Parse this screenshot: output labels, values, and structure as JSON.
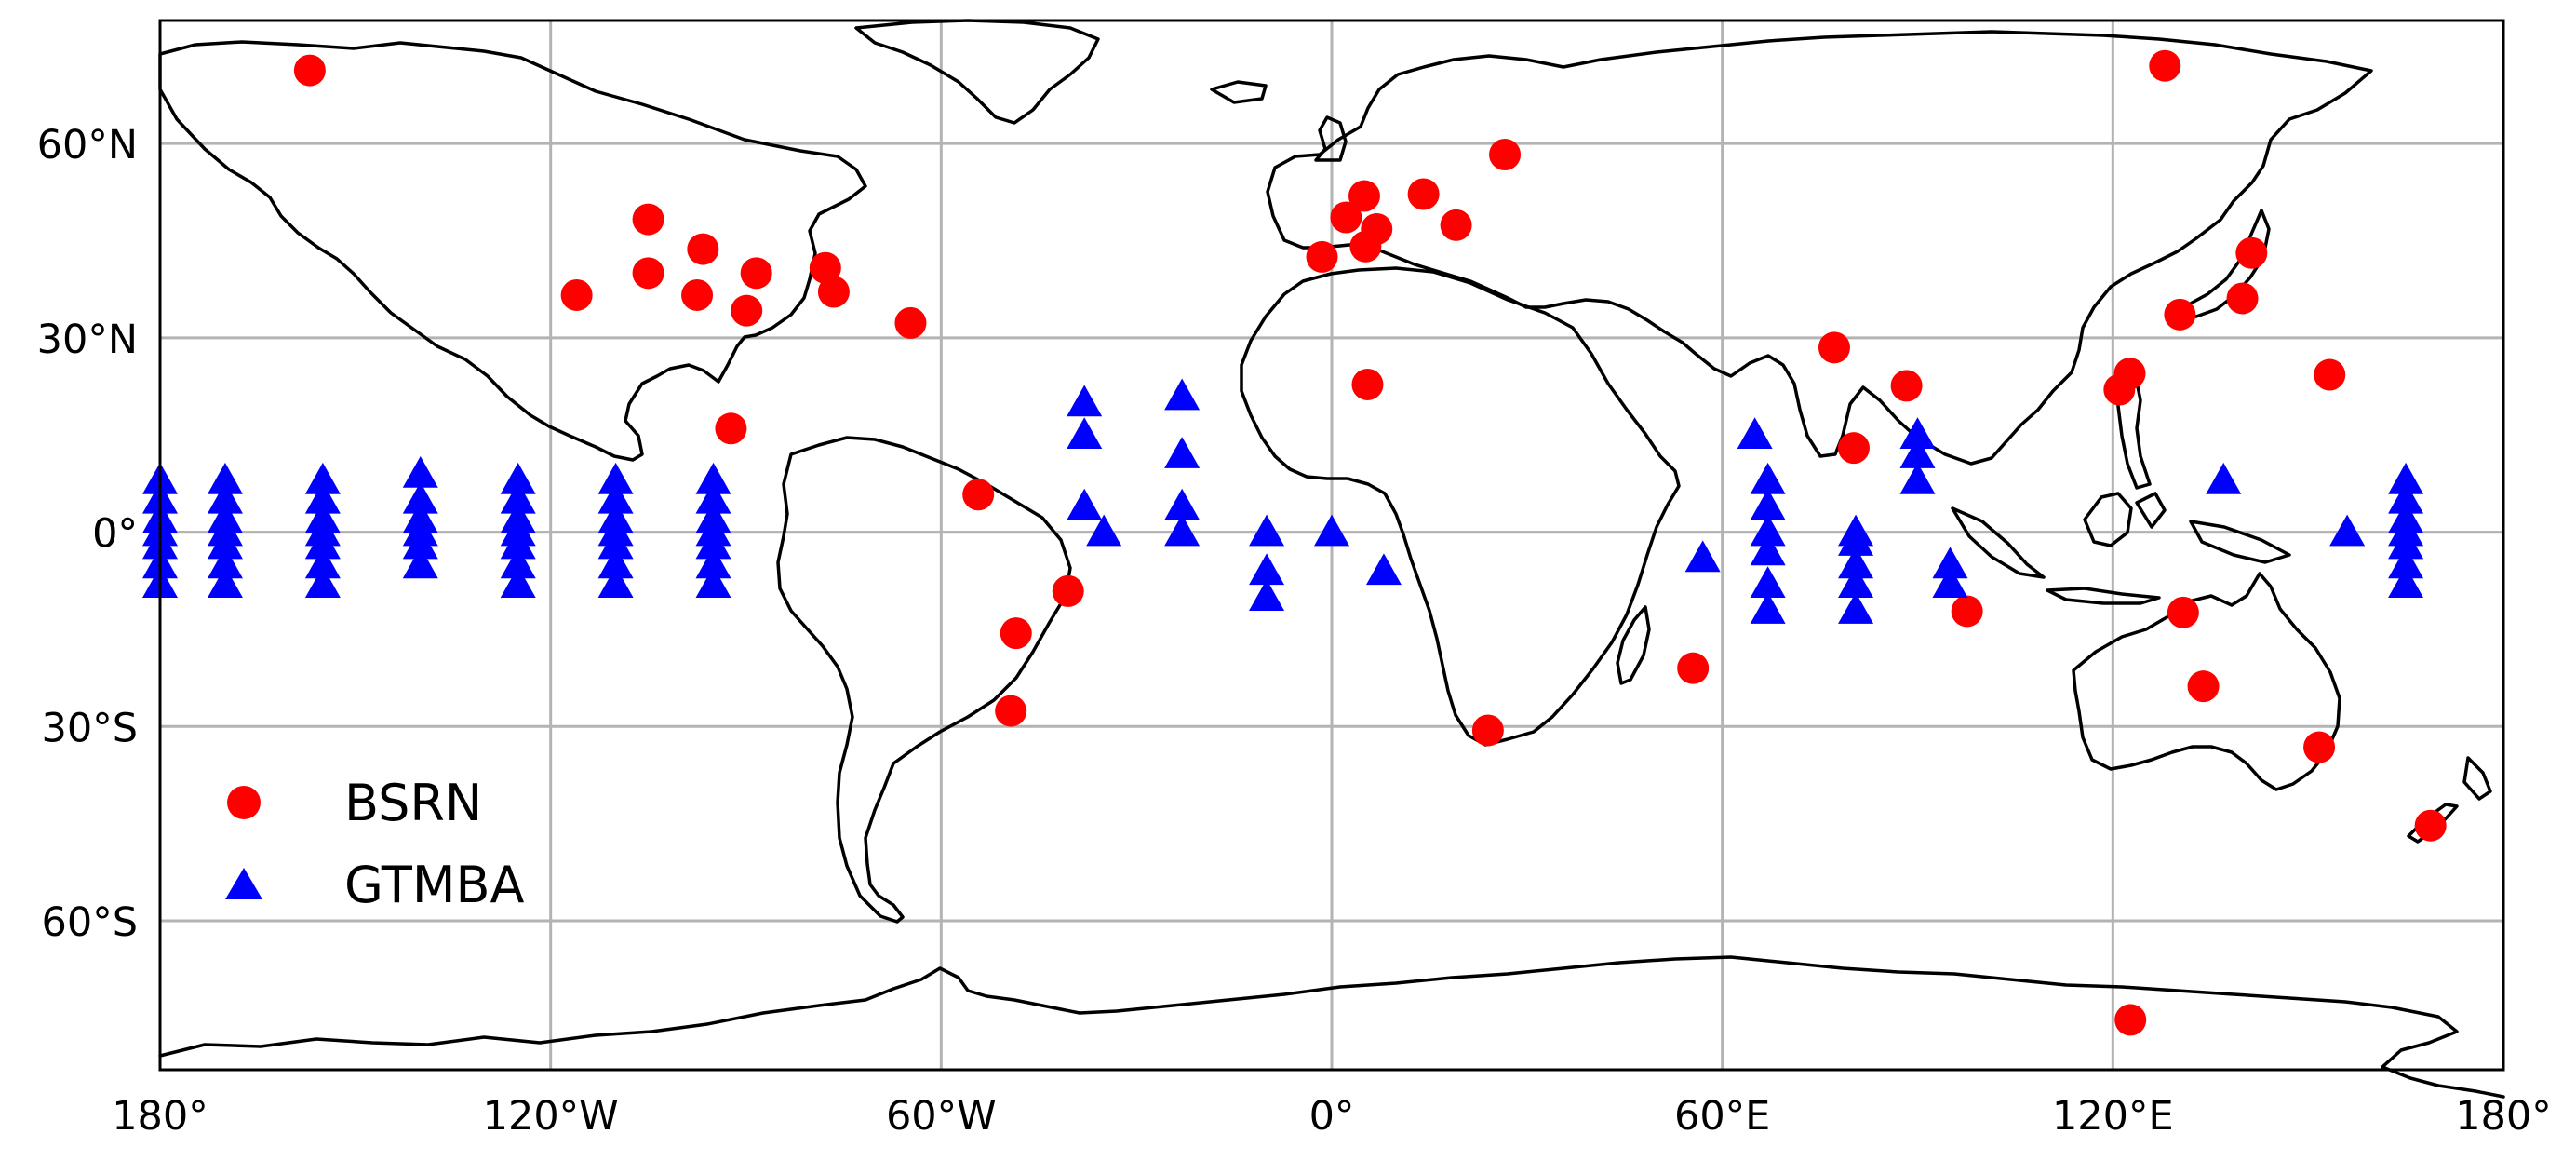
{
  "chart_data": {
    "type": "scatter",
    "projection": "PlateCarree",
    "xlim": [
      -180,
      180
    ],
    "ylim": [
      -83,
      79
    ],
    "grid": true,
    "legend_placement": "lower-left",
    "x_ticks": [
      {
        "value": -180,
        "label": "180°"
      },
      {
        "value": -120,
        "label": "120°W"
      },
      {
        "value": -60,
        "label": "60°W"
      },
      {
        "value": 0,
        "label": "0°"
      },
      {
        "value": 60,
        "label": "60°E"
      },
      {
        "value": 120,
        "label": "120°E"
      },
      {
        "value": 180,
        "label": "180°"
      }
    ],
    "y_ticks": [
      {
        "value": 60,
        "label": "60°N"
      },
      {
        "value": 30,
        "label": "30°N"
      },
      {
        "value": 0,
        "label": "0°"
      },
      {
        "value": -30,
        "label": "30°S"
      },
      {
        "value": -60,
        "label": "60°S"
      }
    ],
    "series": [
      {
        "name": "BSRN",
        "marker": "circle",
        "color": "#ff0000",
        "points": [
          [
            -157,
            71.3
          ],
          [
            -116,
            36.6
          ],
          [
            -105,
            40
          ],
          [
            -105,
            48.3
          ],
          [
            -97.5,
            36.6
          ],
          [
            -96.6,
            43.7
          ],
          [
            -89.9,
            34.2
          ],
          [
            -88.4,
            40
          ],
          [
            -77.8,
            40.8
          ],
          [
            -76.5,
            37.1
          ],
          [
            -64.7,
            32.3
          ],
          [
            -92.3,
            16
          ],
          [
            -54.3,
            5.8
          ],
          [
            -48.5,
            -15.6
          ],
          [
            -40.5,
            -9.1
          ],
          [
            -49.3,
            -27.6
          ],
          [
            -1.5,
            42.5
          ],
          [
            2.2,
            48.6
          ],
          [
            5,
            51.9
          ],
          [
            6.9,
            46.8
          ],
          [
            5.2,
            44.1
          ],
          [
            14.1,
            52.2
          ],
          [
            19.1,
            47.4
          ],
          [
            26.6,
            58.3
          ],
          [
            5.5,
            22.8
          ],
          [
            24,
            -30.6
          ],
          [
            55.5,
            -21
          ],
          [
            77.2,
            28.5
          ],
          [
            80.2,
            13
          ],
          [
            88.3,
            22.6
          ],
          [
            97.6,
            -12.2
          ],
          [
            121,
            22
          ],
          [
            122.6,
            24.5
          ],
          [
            128,
            72
          ],
          [
            130.8,
            -12.4
          ],
          [
            130.3,
            33.6
          ],
          [
            139.9,
            36.1
          ],
          [
            141.3,
            43.1
          ],
          [
            133.9,
            -23.8
          ],
          [
            153.3,
            24.3
          ],
          [
            151.7,
            -33.2
          ],
          [
            168.8,
            -45.3
          ],
          [
            122.7,
            -75.3
          ]
        ]
      },
      {
        "name": "GTMBA",
        "marker": "triangle",
        "color": "#0000ff",
        "points": [
          [
            -180,
            8
          ],
          [
            -180,
            5
          ],
          [
            -180,
            2
          ],
          [
            -180,
            0
          ],
          [
            -180,
            -2
          ],
          [
            -180,
            -5
          ],
          [
            -180,
            -8
          ],
          [
            -170,
            8
          ],
          [
            -170,
            5
          ],
          [
            -170,
            2
          ],
          [
            -170,
            0
          ],
          [
            -170,
            -2
          ],
          [
            -170,
            -5
          ],
          [
            -170,
            -8
          ],
          [
            -155,
            8
          ],
          [
            -155,
            5
          ],
          [
            -155,
            2
          ],
          [
            -155,
            0
          ],
          [
            -155,
            -2
          ],
          [
            -155,
            -5
          ],
          [
            -155,
            -8
          ],
          [
            -140,
            9
          ],
          [
            -140,
            5
          ],
          [
            -140,
            2
          ],
          [
            -140,
            0
          ],
          [
            -140,
            -2
          ],
          [
            -140,
            -5
          ],
          [
            -125,
            8
          ],
          [
            -125,
            5
          ],
          [
            -125,
            2
          ],
          [
            -125,
            0
          ],
          [
            -125,
            -2
          ],
          [
            -125,
            -5
          ],
          [
            -125,
            -8
          ],
          [
            -110,
            8
          ],
          [
            -110,
            5
          ],
          [
            -110,
            2
          ],
          [
            -110,
            0
          ],
          [
            -110,
            -2
          ],
          [
            -110,
            -5
          ],
          [
            -110,
            -8
          ],
          [
            -95,
            8
          ],
          [
            -95,
            5
          ],
          [
            -95,
            2
          ],
          [
            -95,
            0
          ],
          [
            -95,
            -2
          ],
          [
            -95,
            -5
          ],
          [
            -95,
            -8
          ],
          [
            -38,
            20
          ],
          [
            -38,
            15
          ],
          [
            -38,
            4
          ],
          [
            -35,
            0
          ],
          [
            -23,
            21
          ],
          [
            -23,
            12
          ],
          [
            -23,
            4
          ],
          [
            -23,
            0
          ],
          [
            -10,
            0
          ],
          [
            -10,
            -6
          ],
          [
            -10,
            -10
          ],
          [
            0,
            0
          ],
          [
            8,
            -6
          ],
          [
            57,
            -4
          ],
          [
            65,
            15
          ],
          [
            67,
            8
          ],
          [
            67,
            4
          ],
          [
            67,
            0
          ],
          [
            67,
            -3
          ],
          [
            67,
            -8
          ],
          [
            67,
            -12
          ],
          [
            80.5,
            0
          ],
          [
            80.5,
            -1.5
          ],
          [
            80.5,
            -5
          ],
          [
            80.5,
            -8
          ],
          [
            80.5,
            -12
          ],
          [
            90,
            15
          ],
          [
            90,
            12
          ],
          [
            90,
            8
          ],
          [
            95,
            -5
          ],
          [
            95,
            -8
          ],
          [
            137,
            8
          ],
          [
            156,
            0
          ],
          [
            165,
            8
          ],
          [
            165,
            5
          ],
          [
            165,
            2
          ],
          [
            165,
            0
          ],
          [
            165,
            -2
          ],
          [
            165,
            -5
          ],
          [
            165,
            -8
          ]
        ]
      }
    ]
  },
  "legend": {
    "items": [
      {
        "label": "BSRN",
        "marker": "circle",
        "color": "#ff0000"
      },
      {
        "label": "GTMBA",
        "marker": "triangle",
        "color": "#0000ff"
      }
    ]
  },
  "colors": {
    "coastline": "#000000",
    "grid": "#b3b3b3",
    "background": "#ffffff"
  }
}
